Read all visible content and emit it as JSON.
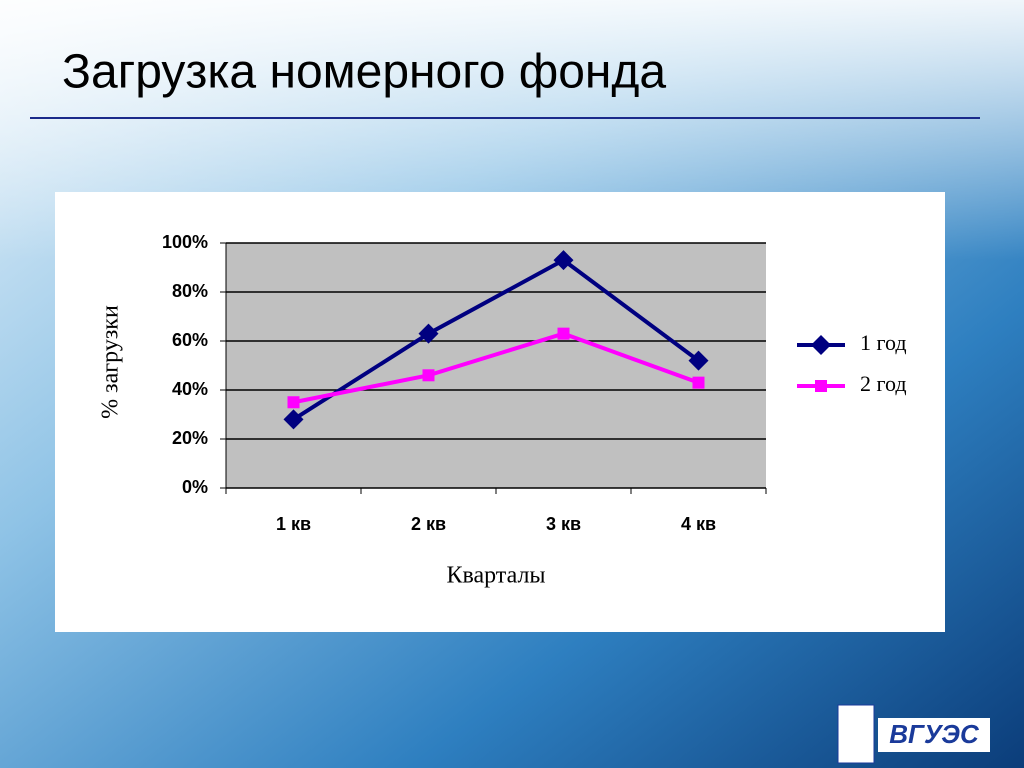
{
  "chart_data": {
    "type": "line",
    "title": "Загрузка номерного фонда",
    "y_label": "% загрузки",
    "x_label": "Кварталы",
    "categories": [
      "1 кв",
      "2 кв",
      "3 кв",
      "4 кв"
    ],
    "series": [
      {
        "name": "1 год",
        "color": "#000080",
        "marker": "diamond",
        "values": [
          28,
          63,
          93,
          52
        ]
      },
      {
        "name": "2 год",
        "color": "#ff00ff",
        "marker": "square",
        "values": [
          35,
          46,
          63,
          43
        ]
      }
    ],
    "ylim": [
      0,
      100
    ],
    "yticks": [
      {
        "value": 0,
        "label": "0%"
      },
      {
        "value": 20,
        "label": "20%"
      },
      {
        "value": 40,
        "label": "40%"
      },
      {
        "value": 60,
        "label": "60%"
      },
      {
        "value": 80,
        "label": "80%"
      },
      {
        "value": 100,
        "label": "100%"
      }
    ],
    "grid": true,
    "legend": "right",
    "logo": "ВГУЭС"
  }
}
